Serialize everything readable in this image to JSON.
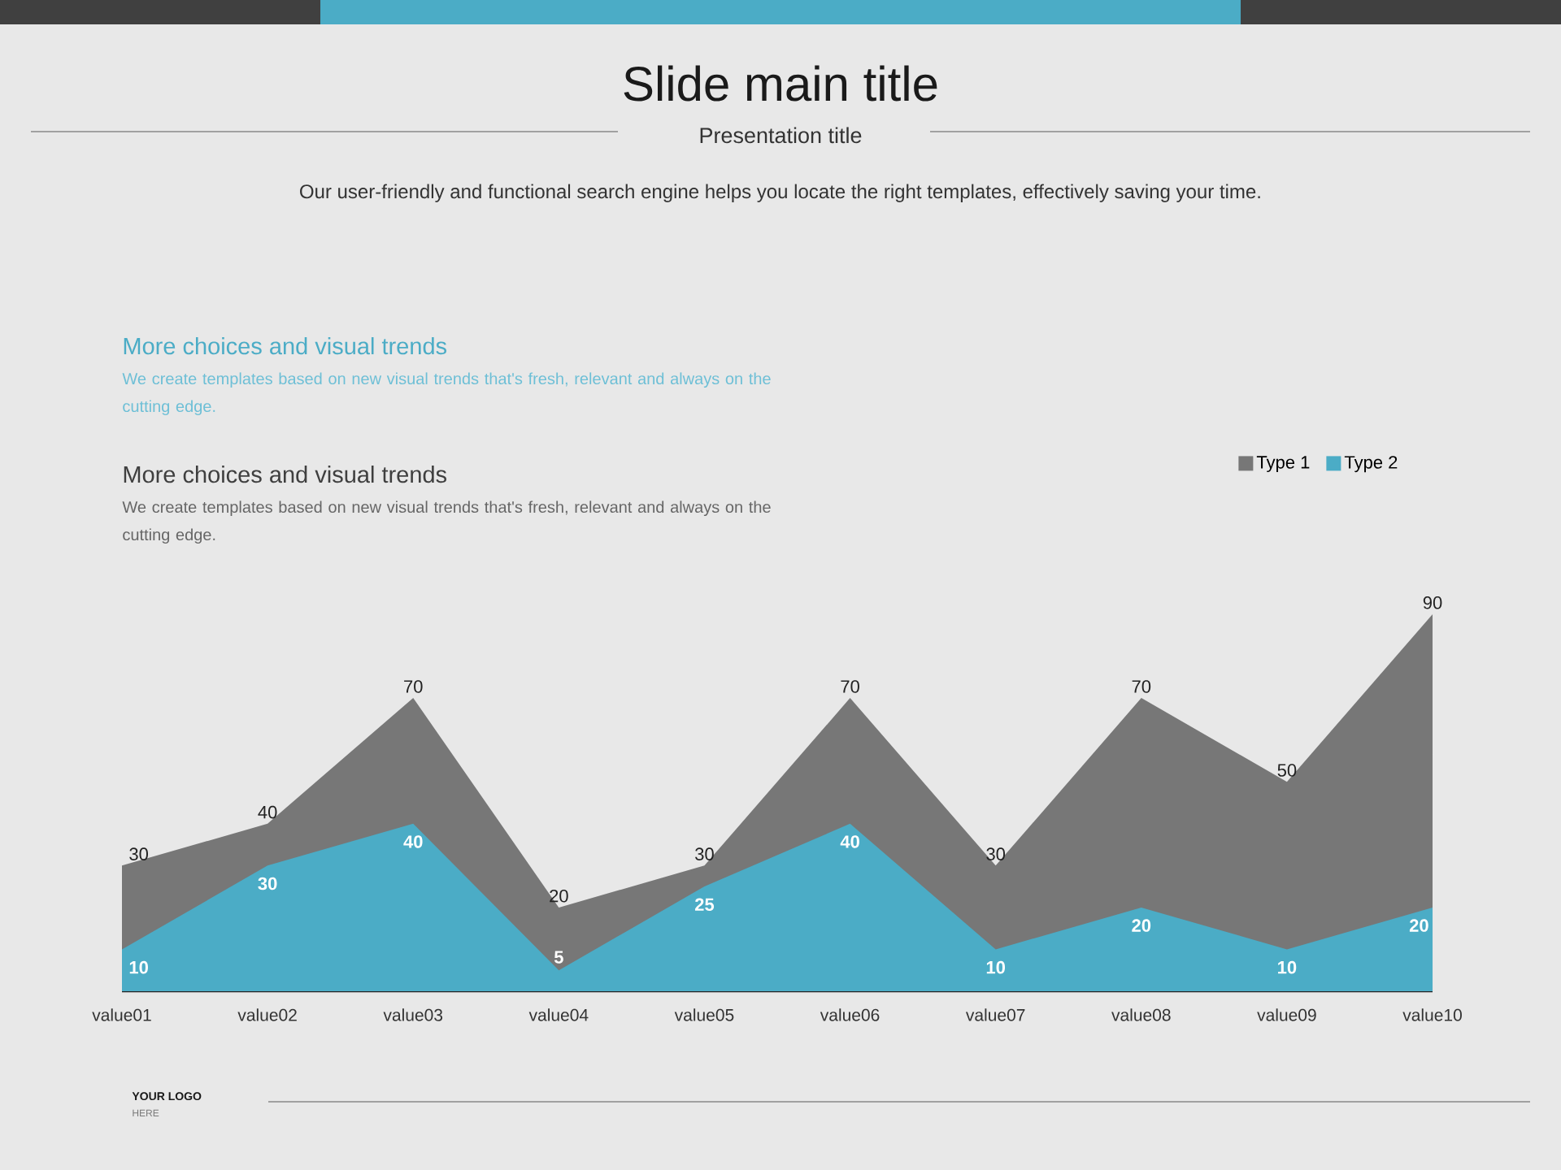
{
  "chart_data": {
    "type": "area",
    "title": "Slide main title",
    "subtitle": "Presentation title",
    "annotations": [
      "Our user-friendly and functional search engine helps you locate the right templates, effectively saving your time.",
      "More choices and visual trends",
      "We create templates based on new visual trends that's fresh, relevant and always on the cutting edge.",
      "More choices and visual trends",
      "We create templates based on new visual trends that's fresh, relevant and always on the cutting edge.",
      "YOUR LOGO",
      "HERE"
    ],
    "categories": [
      "value01",
      "value02",
      "value03",
      "value04",
      "value05",
      "value06",
      "value07",
      "value08",
      "value09",
      "value10"
    ],
    "series": [
      {
        "name": "Type 1",
        "color": "#777777",
        "values": [
          30,
          40,
          70,
          20,
          30,
          70,
          30,
          70,
          50,
          90
        ]
      },
      {
        "name": "Type 2",
        "color": "#4bacc6",
        "values": [
          10,
          30,
          40,
          5,
          25,
          40,
          10,
          20,
          10,
          20
        ]
      }
    ],
    "data_labels": true,
    "legend": "top right",
    "tick_labels": "x"
  }
}
